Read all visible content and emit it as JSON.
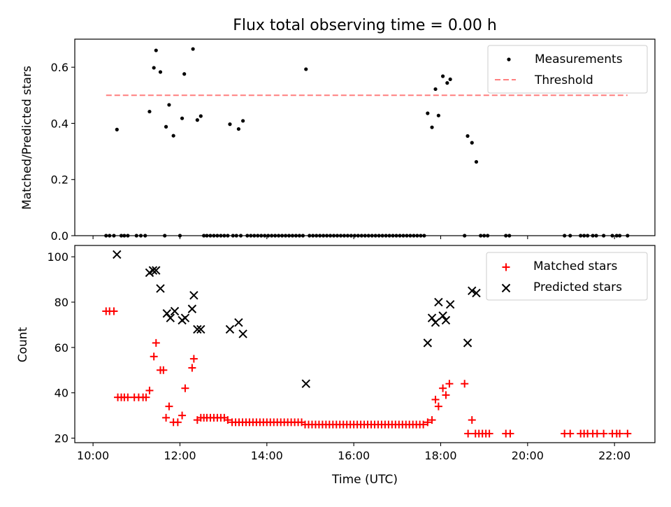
{
  "figure": {
    "title": "Flux total observing time = 0.00 h"
  },
  "chart_data": [
    {
      "type": "scatter",
      "ylabel": "Matched/Predicted stars",
      "xlim": [
        9.58,
        22.93
      ],
      "ylim": [
        0,
        0.7
      ],
      "yticks": [
        0.0,
        0.2,
        0.4,
        0.6
      ],
      "ytick_labels": [
        "0.0",
        "0.2",
        "0.4",
        "0.6"
      ],
      "xticks": [
        10,
        12,
        14,
        16,
        18,
        20,
        22
      ],
      "legend_position": "top-right",
      "series": [
        {
          "name": "Measurements",
          "marker": "dot",
          "color": "#000000",
          "points": [
            [
              10.55,
              0.378
            ],
            [
              11.3,
              0.442
            ],
            [
              11.4,
              0.598
            ],
            [
              11.45,
              0.66
            ],
            [
              11.55,
              0.583
            ],
            [
              11.68,
              0.388
            ],
            [
              11.75,
              0.466
            ],
            [
              11.85,
              0.356
            ],
            [
              12.05,
              0.418
            ],
            [
              12.1,
              0.576
            ],
            [
              12.3,
              0.665
            ],
            [
              12.4,
              0.412
            ],
            [
              12.48,
              0.426
            ],
            [
              13.15,
              0.397
            ],
            [
              13.35,
              0.38
            ],
            [
              13.45,
              0.409
            ],
            [
              14.9,
              0.593
            ],
            [
              17.7,
              0.436
            ],
            [
              17.8,
              0.386
            ],
            [
              17.88,
              0.522
            ],
            [
              17.95,
              0.428
            ],
            [
              18.05,
              0.568
            ],
            [
              18.15,
              0.544
            ],
            [
              18.22,
              0.557
            ],
            [
              18.62,
              0.355
            ],
            [
              18.72,
              0.331
            ],
            [
              18.82,
              0.263
            ],
            [
              10.3,
              0.0
            ],
            [
              10.38,
              0.0
            ],
            [
              10.48,
              0.0
            ],
            [
              10.65,
              0.0
            ],
            [
              10.72,
              0.0
            ],
            [
              10.8,
              0.0
            ],
            [
              11.0,
              0.0
            ],
            [
              11.1,
              0.0
            ],
            [
              11.2,
              0.0
            ],
            [
              11.65,
              0.0
            ],
            [
              12.0,
              0.0
            ],
            [
              12.55,
              0.0
            ],
            [
              12.62,
              0.0
            ],
            [
              12.7,
              0.0
            ],
            [
              12.78,
              0.0
            ],
            [
              12.86,
              0.0
            ],
            [
              12.94,
              0.0
            ],
            [
              13.02,
              0.0
            ],
            [
              13.1,
              0.0
            ],
            [
              13.22,
              0.0
            ],
            [
              13.3,
              0.0
            ],
            [
              13.4,
              0.0
            ],
            [
              13.55,
              0.0
            ],
            [
              13.63,
              0.0
            ],
            [
              13.71,
              0.0
            ],
            [
              13.79,
              0.0
            ],
            [
              13.87,
              0.0
            ],
            [
              13.95,
              0.0
            ],
            [
              14.03,
              0.0
            ],
            [
              14.11,
              0.0
            ],
            [
              14.19,
              0.0
            ],
            [
              14.27,
              0.0
            ],
            [
              14.35,
              0.0
            ],
            [
              14.43,
              0.0
            ],
            [
              14.51,
              0.0
            ],
            [
              14.59,
              0.0
            ],
            [
              14.67,
              0.0
            ],
            [
              14.75,
              0.0
            ],
            [
              14.83,
              0.0
            ],
            [
              14.98,
              0.0
            ],
            [
              15.06,
              0.0
            ],
            [
              15.14,
              0.0
            ],
            [
              15.22,
              0.0
            ],
            [
              15.3,
              0.0
            ],
            [
              15.38,
              0.0
            ],
            [
              15.46,
              0.0
            ],
            [
              15.54,
              0.0
            ],
            [
              15.62,
              0.0
            ],
            [
              15.7,
              0.0
            ],
            [
              15.78,
              0.0
            ],
            [
              15.86,
              0.0
            ],
            [
              15.94,
              0.0
            ],
            [
              16.02,
              0.0
            ],
            [
              16.1,
              0.0
            ],
            [
              16.18,
              0.0
            ],
            [
              16.26,
              0.0
            ],
            [
              16.34,
              0.0
            ],
            [
              16.42,
              0.0
            ],
            [
              16.5,
              0.0
            ],
            [
              16.58,
              0.0
            ],
            [
              16.66,
              0.0
            ],
            [
              16.74,
              0.0
            ],
            [
              16.82,
              0.0
            ],
            [
              16.9,
              0.0
            ],
            [
              16.98,
              0.0
            ],
            [
              17.06,
              0.0
            ],
            [
              17.14,
              0.0
            ],
            [
              17.22,
              0.0
            ],
            [
              17.3,
              0.0
            ],
            [
              17.38,
              0.0
            ],
            [
              17.46,
              0.0
            ],
            [
              17.54,
              0.0
            ],
            [
              17.62,
              0.0
            ],
            [
              18.55,
              0.0
            ],
            [
              18.92,
              0.0
            ],
            [
              19.0,
              0.0
            ],
            [
              19.08,
              0.0
            ],
            [
              19.5,
              0.0
            ],
            [
              19.58,
              0.0
            ],
            [
              20.85,
              0.0
            ],
            [
              20.98,
              0.0
            ],
            [
              21.22,
              0.0
            ],
            [
              21.3,
              0.0
            ],
            [
              21.38,
              0.0
            ],
            [
              21.5,
              0.0
            ],
            [
              21.58,
              0.0
            ],
            [
              21.75,
              0.0
            ],
            [
              21.95,
              0.0
            ],
            [
              22.05,
              0.0
            ],
            [
              22.12,
              0.0
            ],
            [
              22.3,
              0.0
            ]
          ]
        },
        {
          "name": "Threshold",
          "marker": "dashed-line",
          "color": "#ff7f7f",
          "points": [
            [
              10.3,
              0.5
            ],
            [
              22.3,
              0.5
            ]
          ]
        }
      ]
    },
    {
      "type": "scatter",
      "xlabel": "Time (UTC)",
      "ylabel": "Count",
      "xlim": [
        9.58,
        22.93
      ],
      "ylim": [
        18,
        105
      ],
      "yticks": [
        20,
        40,
        60,
        80,
        100
      ],
      "ytick_labels": [
        "20",
        "40",
        "60",
        "80",
        "100"
      ],
      "xticks": [
        10,
        12,
        14,
        16,
        18,
        20,
        22
      ],
      "xtick_labels": [
        "10:00",
        "12:00",
        "14:00",
        "16:00",
        "18:00",
        "20:00",
        "22:00"
      ],
      "legend_position": "top-right",
      "series": [
        {
          "name": "Matched stars",
          "marker": "plus",
          "color": "#ff0000",
          "points": [
            [
              10.3,
              76
            ],
            [
              10.38,
              76
            ],
            [
              10.48,
              76
            ],
            [
              10.57,
              38
            ],
            [
              10.65,
              38
            ],
            [
              10.72,
              38
            ],
            [
              10.8,
              38
            ],
            [
              10.95,
              38
            ],
            [
              11.05,
              38
            ],
            [
              11.15,
              38
            ],
            [
              11.22,
              38
            ],
            [
              11.3,
              41
            ],
            [
              11.4,
              56
            ],
            [
              11.45,
              62
            ],
            [
              11.55,
              50
            ],
            [
              11.62,
              50
            ],
            [
              11.68,
              29
            ],
            [
              11.75,
              34
            ],
            [
              11.85,
              27
            ],
            [
              11.95,
              27
            ],
            [
              12.05,
              30
            ],
            [
              12.12,
              42
            ],
            [
              12.28,
              51
            ],
            [
              12.32,
              55
            ],
            [
              12.4,
              28
            ],
            [
              12.48,
              29
            ],
            [
              12.55,
              29
            ],
            [
              12.62,
              29
            ],
            [
              12.7,
              29
            ],
            [
              12.78,
              29
            ],
            [
              12.86,
              29
            ],
            [
              12.94,
              29
            ],
            [
              13.02,
              29
            ],
            [
              13.1,
              28
            ],
            [
              13.2,
              27
            ],
            [
              13.28,
              27
            ],
            [
              13.36,
              27
            ],
            [
              13.44,
              27
            ],
            [
              13.52,
              27
            ],
            [
              13.6,
              27
            ],
            [
              13.68,
              27
            ],
            [
              13.76,
              27
            ],
            [
              13.84,
              27
            ],
            [
              13.92,
              27
            ],
            [
              14.0,
              27
            ],
            [
              14.08,
              27
            ],
            [
              14.16,
              27
            ],
            [
              14.24,
              27
            ],
            [
              14.32,
              27
            ],
            [
              14.4,
              27
            ],
            [
              14.48,
              27
            ],
            [
              14.56,
              27
            ],
            [
              14.64,
              27
            ],
            [
              14.72,
              27
            ],
            [
              14.8,
              27
            ],
            [
              14.88,
              26
            ],
            [
              14.96,
              26
            ],
            [
              15.04,
              26
            ],
            [
              15.12,
              26
            ],
            [
              15.2,
              26
            ],
            [
              15.28,
              26
            ],
            [
              15.36,
              26
            ],
            [
              15.44,
              26
            ],
            [
              15.52,
              26
            ],
            [
              15.6,
              26
            ],
            [
              15.68,
              26
            ],
            [
              15.76,
              26
            ],
            [
              15.84,
              26
            ],
            [
              15.92,
              26
            ],
            [
              16.0,
              26
            ],
            [
              16.08,
              26
            ],
            [
              16.16,
              26
            ],
            [
              16.24,
              26
            ],
            [
              16.32,
              26
            ],
            [
              16.4,
              26
            ],
            [
              16.48,
              26
            ],
            [
              16.56,
              26
            ],
            [
              16.64,
              26
            ],
            [
              16.72,
              26
            ],
            [
              16.8,
              26
            ],
            [
              16.88,
              26
            ],
            [
              16.96,
              26
            ],
            [
              17.04,
              26
            ],
            [
              17.12,
              26
            ],
            [
              17.2,
              26
            ],
            [
              17.28,
              26
            ],
            [
              17.36,
              26
            ],
            [
              17.44,
              26
            ],
            [
              17.52,
              26
            ],
            [
              17.6,
              26
            ],
            [
              17.7,
              27
            ],
            [
              17.8,
              28
            ],
            [
              17.88,
              37
            ],
            [
              17.95,
              34
            ],
            [
              18.05,
              42
            ],
            [
              18.12,
              39
            ],
            [
              18.2,
              44
            ],
            [
              18.55,
              44
            ],
            [
              18.63,
              22
            ],
            [
              18.72,
              28
            ],
            [
              18.8,
              22
            ],
            [
              18.88,
              22
            ],
            [
              18.96,
              22
            ],
            [
              19.04,
              22
            ],
            [
              19.12,
              22
            ],
            [
              19.5,
              22
            ],
            [
              19.6,
              22
            ],
            [
              20.85,
              22
            ],
            [
              20.98,
              22
            ],
            [
              21.22,
              22
            ],
            [
              21.3,
              22
            ],
            [
              21.38,
              22
            ],
            [
              21.5,
              22
            ],
            [
              21.6,
              22
            ],
            [
              21.75,
              22
            ],
            [
              21.95,
              22
            ],
            [
              22.05,
              22
            ],
            [
              22.12,
              22
            ],
            [
              22.3,
              22
            ]
          ]
        },
        {
          "name": "Predicted stars",
          "marker": "x",
          "color": "#000000",
          "points": [
            [
              10.55,
              101
            ],
            [
              11.3,
              93
            ],
            [
              11.38,
              94
            ],
            [
              11.45,
              94
            ],
            [
              11.55,
              86
            ],
            [
              11.7,
              75
            ],
            [
              11.78,
              73
            ],
            [
              11.88,
              76
            ],
            [
              12.05,
              72
            ],
            [
              12.12,
              73
            ],
            [
              12.28,
              77
            ],
            [
              12.32,
              83
            ],
            [
              12.4,
              68
            ],
            [
              12.48,
              68
            ],
            [
              13.15,
              68
            ],
            [
              13.35,
              71
            ],
            [
              13.45,
              66
            ],
            [
              14.9,
              44
            ],
            [
              17.7,
              62
            ],
            [
              17.8,
              73
            ],
            [
              17.88,
              71
            ],
            [
              17.95,
              80
            ],
            [
              18.05,
              74
            ],
            [
              18.12,
              72
            ],
            [
              18.22,
              79
            ],
            [
              18.62,
              62
            ],
            [
              18.72,
              85
            ],
            [
              18.82,
              84
            ]
          ]
        }
      ]
    }
  ]
}
